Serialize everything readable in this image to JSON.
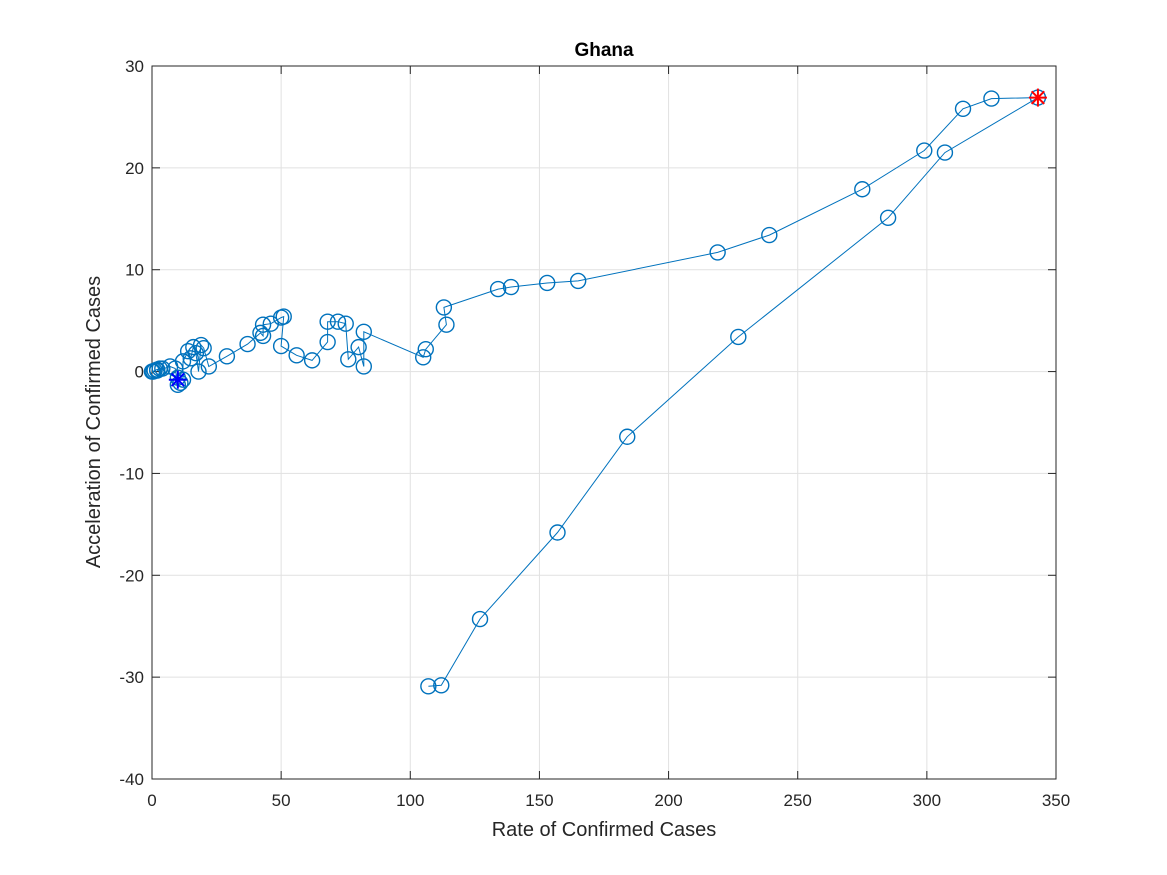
{
  "chart_data": {
    "type": "line",
    "title": "Ghana",
    "xlabel": "Rate of Confirmed Cases",
    "ylabel": "Acceleration of Confirmed Cases",
    "xlim": [
      0,
      350
    ],
    "ylim": [
      -40,
      30
    ],
    "xticks": [
      0,
      50,
      100,
      150,
      200,
      250,
      300,
      350
    ],
    "yticks": [
      -40,
      -30,
      -20,
      -10,
      0,
      10,
      20,
      30
    ],
    "grid": true,
    "legend": "none",
    "colors": {
      "series": "#0072BD",
      "start_marker": "#0000FF",
      "end_marker": "#FF0000"
    },
    "series": [
      {
        "marker": "circle",
        "points": [
          [
            0,
            0
          ],
          [
            0.5,
            0
          ],
          [
            1,
            0.1
          ],
          [
            2,
            0.2
          ],
          [
            3,
            0.3
          ],
          [
            4,
            0.3
          ],
          [
            2,
            0.1
          ],
          [
            7,
            0.5
          ],
          [
            9,
            0.3
          ],
          [
            10,
            -1.3
          ],
          [
            11,
            -1.1
          ],
          [
            10,
            -0.6
          ],
          [
            12,
            -0.8
          ],
          [
            12,
            1.0
          ],
          [
            14,
            2.0
          ],
          [
            15,
            1.3
          ],
          [
            16,
            2.4
          ],
          [
            17,
            1.8
          ],
          [
            18,
            0.0
          ],
          [
            19,
            2.6
          ],
          [
            20,
            2.3
          ],
          [
            22,
            0.5
          ],
          [
            29,
            1.5
          ],
          [
            37,
            2.7
          ],
          [
            42,
            3.8
          ],
          [
            43,
            3.5
          ],
          [
            43,
            4.6
          ],
          [
            46,
            4.7
          ],
          [
            50,
            5.3
          ],
          [
            51,
            5.4
          ],
          [
            50,
            2.5
          ],
          [
            56,
            1.6
          ],
          [
            62,
            1.1
          ],
          [
            68,
            2.9
          ],
          [
            68,
            4.9
          ],
          [
            72,
            4.9
          ],
          [
            75,
            4.7
          ],
          [
            76,
            1.2
          ],
          [
            80,
            2.4
          ],
          [
            82,
            0.5
          ],
          [
            82,
            3.9
          ],
          [
            105,
            1.4
          ],
          [
            106,
            2.2
          ],
          [
            114,
            4.6
          ],
          [
            113,
            6.3
          ],
          [
            134,
            8.1
          ],
          [
            139,
            8.3
          ],
          [
            153,
            8.7
          ],
          [
            165,
            8.9
          ],
          [
            219,
            11.7
          ],
          [
            239,
            13.4
          ],
          [
            275,
            17.9
          ],
          [
            299,
            21.7
          ],
          [
            314,
            25.8
          ],
          [
            325,
            26.8
          ],
          [
            343,
            26.9
          ],
          [
            307,
            21.5
          ],
          [
            285,
            15.1
          ],
          [
            227,
            3.4
          ],
          [
            184,
            -6.4
          ],
          [
            157,
            -15.8
          ],
          [
            127,
            -24.3
          ],
          [
            112,
            -30.8
          ],
          [
            107,
            -30.9
          ]
        ]
      }
    ],
    "start_point": [
      10,
      -0.8
    ],
    "end_point": [
      343,
      26.9
    ]
  }
}
